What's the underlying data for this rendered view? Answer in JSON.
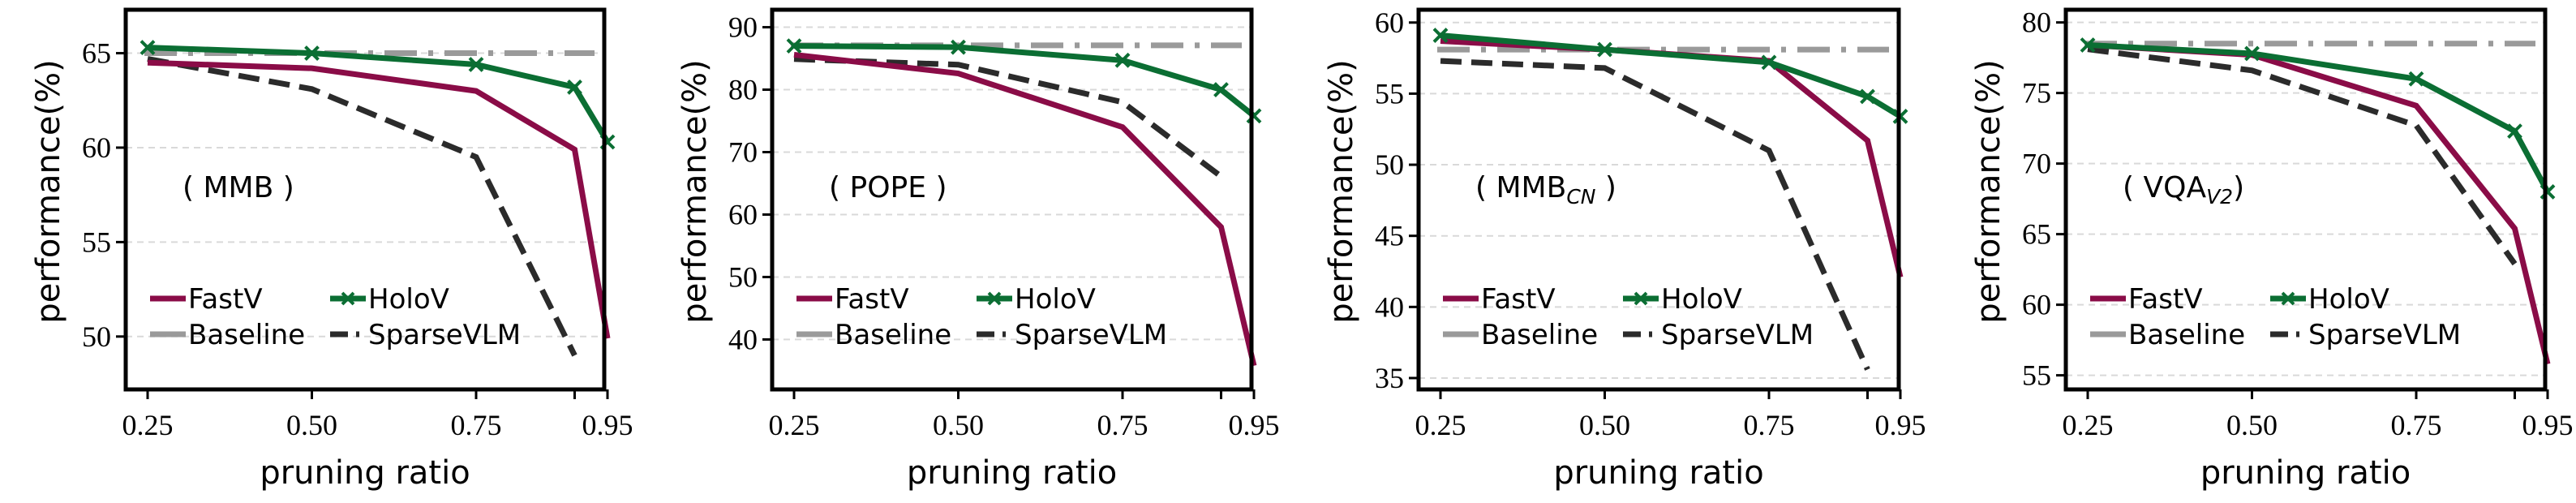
{
  "chart_data": [
    {
      "type": "line",
      "title": "( MMB )",
      "panel_label": {
        "main": "MMB",
        "sub": ""
      },
      "xlabel": "pruning ratio",
      "ylabel": "performance(%)",
      "x": [
        0.25,
        0.5,
        0.75,
        0.9,
        0.95
      ],
      "xticks": [
        0.25,
        0.5,
        0.75,
        0.9,
        0.95
      ],
      "xtick_labels": [
        "0.25",
        "0.50",
        "0.75",
        "",
        "0.95"
      ],
      "yticks": [
        50,
        55,
        60,
        65
      ],
      "ylim": [
        47.2,
        67.3
      ],
      "grid": true,
      "legend_position": "lower-left",
      "series": [
        {
          "name": "FastV",
          "values": [
            64.5,
            64.2,
            63.0,
            59.9,
            49.9
          ]
        },
        {
          "name": "HoloV",
          "values": [
            65.3,
            65.0,
            64.4,
            63.2,
            60.3
          ]
        },
        {
          "name": "Baseline",
          "values": [
            65.0,
            65.0,
            65.0,
            65.0,
            65.0
          ]
        },
        {
          "name": "SparseVLM",
          "values": [
            64.7,
            63.1,
            59.5,
            49.0,
            null
          ]
        }
      ]
    },
    {
      "type": "line",
      "title": "( POPE )",
      "panel_label": {
        "main": "POPE",
        "sub": ""
      },
      "xlabel": "pruning ratio",
      "ylabel": "performance(%)",
      "x": [
        0.25,
        0.5,
        0.75,
        0.9,
        0.95
      ],
      "xticks": [
        0.25,
        0.5,
        0.75,
        0.9,
        0.95
      ],
      "xtick_labels": [
        "0.25",
        "0.50",
        "0.75",
        "",
        "0.95"
      ],
      "yticks": [
        40,
        50,
        60,
        70,
        80,
        90
      ],
      "ylim": [
        32.0,
        92.8
      ],
      "grid": true,
      "legend_position": "lower-left",
      "series": [
        {
          "name": "FastV",
          "values": [
            85.6,
            82.6,
            74.0,
            58.0,
            35.8
          ]
        },
        {
          "name": "HoloV",
          "values": [
            87.0,
            86.8,
            84.7,
            80.0,
            75.8
          ]
        },
        {
          "name": "Baseline",
          "values": [
            87.1,
            87.1,
            87.1,
            87.1,
            87.1
          ]
        },
        {
          "name": "SparseVLM",
          "values": [
            84.9,
            84.0,
            78.0,
            66.1,
            null
          ]
        }
      ]
    },
    {
      "type": "line",
      "title": "( MMB_CN )",
      "panel_label": {
        "main": "MMB",
        "sub": "CN"
      },
      "xlabel": "pruning ratio",
      "ylabel": "performance(%)",
      "x": [
        0.25,
        0.5,
        0.75,
        0.9,
        0.95
      ],
      "xticks": [
        0.25,
        0.5,
        0.75,
        0.9,
        0.95
      ],
      "xtick_labels": [
        "0.25",
        "0.50",
        "0.75",
        "",
        "0.95"
      ],
      "yticks": [
        35,
        40,
        45,
        50,
        55,
        60
      ],
      "ylim": [
        34.2,
        60.9
      ],
      "grid": true,
      "legend_position": "lower-left",
      "series": [
        {
          "name": "FastV",
          "values": [
            58.7,
            58.1,
            57.3,
            51.7,
            42.1
          ]
        },
        {
          "name": "HoloV",
          "values": [
            59.1,
            58.1,
            57.2,
            54.8,
            53.4
          ]
        },
        {
          "name": "Baseline",
          "values": [
            58.1,
            58.1,
            58.1,
            58.1,
            58.1
          ]
        },
        {
          "name": "SparseVLM",
          "values": [
            57.3,
            56.8,
            51.0,
            35.6,
            null
          ]
        }
      ]
    },
    {
      "type": "line",
      "title": "( VQA_V2 )",
      "panel_label": {
        "main": "VQA",
        "sub": "V2"
      },
      "xlabel": "pruning ratio",
      "ylabel": "performance(%)",
      "x": [
        0.25,
        0.5,
        0.75,
        0.9,
        0.95
      ],
      "xticks": [
        0.25,
        0.5,
        0.75,
        0.9,
        0.95
      ],
      "xtick_labels": [
        "0.25",
        "0.50",
        "0.75",
        "",
        "0.95"
      ],
      "yticks": [
        55,
        60,
        65,
        70,
        75,
        80
      ],
      "ylim": [
        54.0,
        80.9
      ],
      "grid": true,
      "legend_position": "lower-left",
      "series": [
        {
          "name": "FastV",
          "values": [
            78.4,
            77.7,
            74.1,
            65.4,
            55.8
          ]
        },
        {
          "name": "HoloV",
          "values": [
            78.4,
            77.8,
            76.0,
            72.3,
            68.0
          ]
        },
        {
          "name": "Baseline",
          "values": [
            78.5,
            78.5,
            78.5,
            78.5,
            78.5
          ]
        },
        {
          "name": "SparseVLM",
          "values": [
            78.1,
            76.6,
            72.7,
            62.9,
            null
          ]
        }
      ]
    }
  ],
  "legend": [
    {
      "name": "FastV",
      "color": "#8a0c47",
      "style": "solid",
      "marker": "none"
    },
    {
      "name": "HoloV",
      "color": "#0b6e33",
      "style": "solid",
      "marker": "x"
    },
    {
      "name": "Baseline",
      "color": "#9a9a9a",
      "style": "dashdot",
      "marker": "none"
    },
    {
      "name": "SparseVLM",
      "color": "#2b2b2b",
      "style": "dashed",
      "marker": "none"
    }
  ],
  "colors": {
    "grid": "#d9d9d9",
    "axis": "#000000"
  }
}
